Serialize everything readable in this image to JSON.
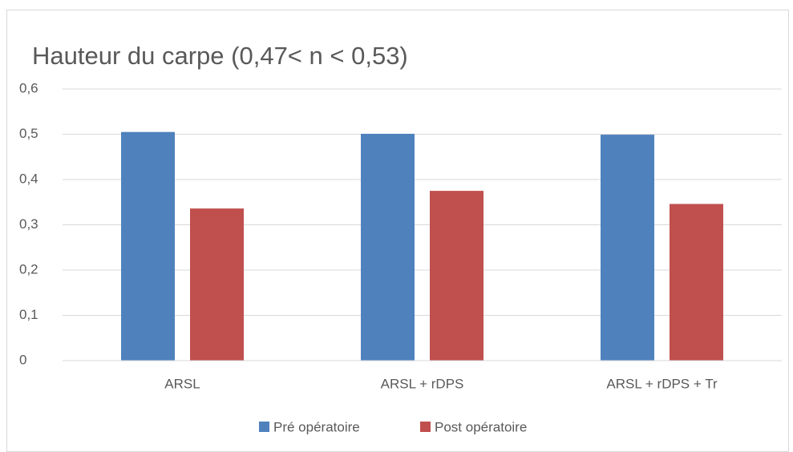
{
  "chart_data": {
    "type": "bar",
    "title": "Hauteur du carpe (0,47< n < 0,53)",
    "categories": [
      "ARSL",
      "ARSL + rDPS",
      "ARSL + rDPS + Tr"
    ],
    "series": [
      {
        "name": "Pré opératoire",
        "color": "#4f81bd",
        "values": [
          0.505,
          0.501,
          0.499
        ]
      },
      {
        "name": "Post opératoire",
        "color": "#c0504d",
        "values": [
          0.336,
          0.375,
          0.346
        ]
      }
    ],
    "ylim": [
      0,
      0.6
    ],
    "yticks": [
      0,
      {
        "value": 0.1,
        "label": "0,1"
      },
      {
        "value": 0.2,
        "label": "0,2"
      },
      {
        "value": 0.3,
        "label": "0,3"
      },
      {
        "value": 0.4,
        "label": "0,4"
      },
      {
        "value": 0.5,
        "label": "0,5"
      },
      {
        "value": 0.6,
        "label": "0,6"
      }
    ],
    "grid": true,
    "legend": "bottom"
  }
}
